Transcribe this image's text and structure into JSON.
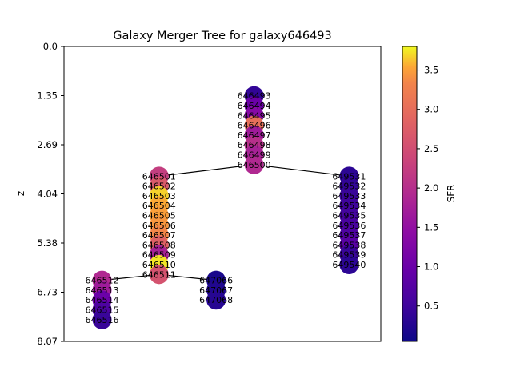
{
  "chart_data": {
    "type": "scatter",
    "title": "Galaxy Merger Tree for galaxy646493",
    "xlabel": "",
    "ylabel": "z",
    "ylim": [
      8.07,
      0.0
    ],
    "yticks": [
      "0.0",
      "1.35",
      "2.69",
      "4.04",
      "5.38",
      "6.73",
      "8.07"
    ],
    "colorbar": {
      "label": "SFR",
      "min": 0.05,
      "max": 3.8,
      "ticks": [
        "0.5",
        "1.0",
        "1.5",
        "2.0",
        "2.5",
        "3.0",
        "3.5"
      ],
      "tick_values": [
        0.5,
        1.0,
        1.5,
        2.0,
        2.5,
        3.0,
        3.5
      ]
    },
    "nodes": [
      {
        "id": "main",
        "x": 0.6,
        "z": 1.35,
        "labels": [
          "646493",
          "646494",
          "646495",
          "646496",
          "646497",
          "646498",
          "646499",
          "646500"
        ],
        "sfr": [
          0.35,
          0.9,
          1.2,
          2.7,
          1.5,
          1.8,
          1.6,
          1.7
        ]
      },
      {
        "id": "b1",
        "x": 0.3,
        "z": 3.55,
        "labels": [
          "646501",
          "646502",
          "646503",
          "646504",
          "646505",
          "646506",
          "646507",
          "646508",
          "646509",
          "646510",
          "646511"
        ],
        "sfr": [
          2.0,
          2.4,
          3.6,
          3.4,
          3.3,
          3.2,
          3.0,
          2.5,
          1.6,
          3.7,
          2.3
        ]
      },
      {
        "id": "b2",
        "x": 0.9,
        "z": 3.55,
        "labels": [
          "649531",
          "649532",
          "649533",
          "649534",
          "649535",
          "649536",
          "649537",
          "649538",
          "649539",
          "649540"
        ],
        "sfr": [
          0.3,
          0.35,
          0.4,
          0.45,
          0.5,
          0.55,
          0.6,
          0.7,
          0.4,
          0.3
        ]
      },
      {
        "id": "b3",
        "x": 0.12,
        "z": 6.4,
        "labels": [
          "646512",
          "646513",
          "646514",
          "646515",
          "646516"
        ],
        "sfr": [
          1.7,
          1.5,
          0.9,
          0.6,
          0.4
        ]
      },
      {
        "id": "b4",
        "x": 0.48,
        "z": 6.4,
        "labels": [
          "647066",
          "647067",
          "647068"
        ],
        "sfr": [
          0.15,
          0.2,
          0.25
        ]
      }
    ],
    "edges": [
      {
        "from": "main",
        "to": "b1"
      },
      {
        "from": "main",
        "to": "b2"
      },
      {
        "from": "b1",
        "to": "b3"
      },
      {
        "from": "b1",
        "to": "b4"
      }
    ]
  }
}
